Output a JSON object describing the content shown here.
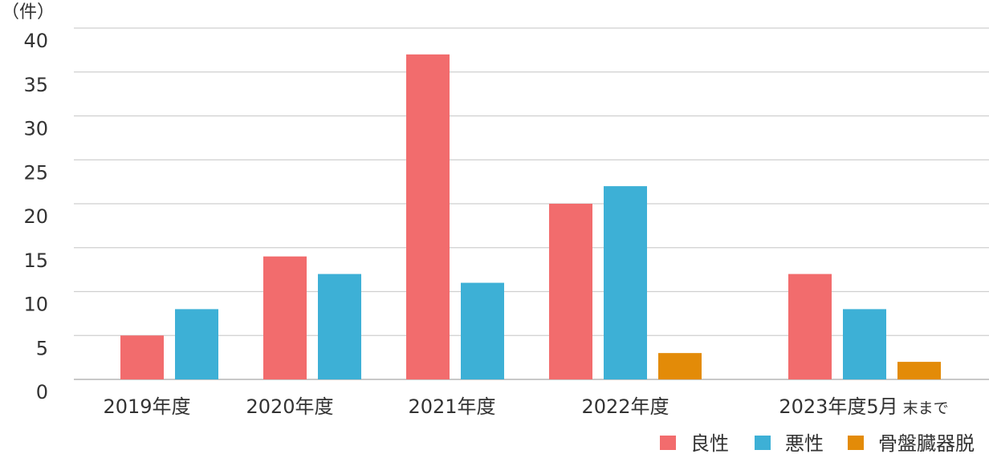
{
  "chart_data": {
    "type": "bar",
    "unit_label": "（件）",
    "categories": [
      {
        "main": "2019年度",
        "suffix": ""
      },
      {
        "main": "2020年度",
        "suffix": ""
      },
      {
        "main": "2021年度",
        "suffix": ""
      },
      {
        "main": "2022年度",
        "suffix": ""
      },
      {
        "main": "2023年度5月",
        "suffix": "末まで"
      }
    ],
    "series": [
      {
        "name": "良性",
        "color": "#f26c6d",
        "values": [
          5,
          14,
          37,
          20,
          12
        ]
      },
      {
        "name": "悪性",
        "color": "#3db0d6",
        "values": [
          8,
          12,
          11,
          22,
          8
        ]
      },
      {
        "name": "骨盤臓器脱",
        "color": "#e38b08",
        "values": [
          null,
          null,
          null,
          3,
          2
        ]
      }
    ],
    "ylim": [
      0,
      40
    ],
    "yticks": [
      0,
      5,
      10,
      15,
      20,
      25,
      30,
      35,
      40
    ],
    "grid": true,
    "legend_position": "bottom-right"
  }
}
